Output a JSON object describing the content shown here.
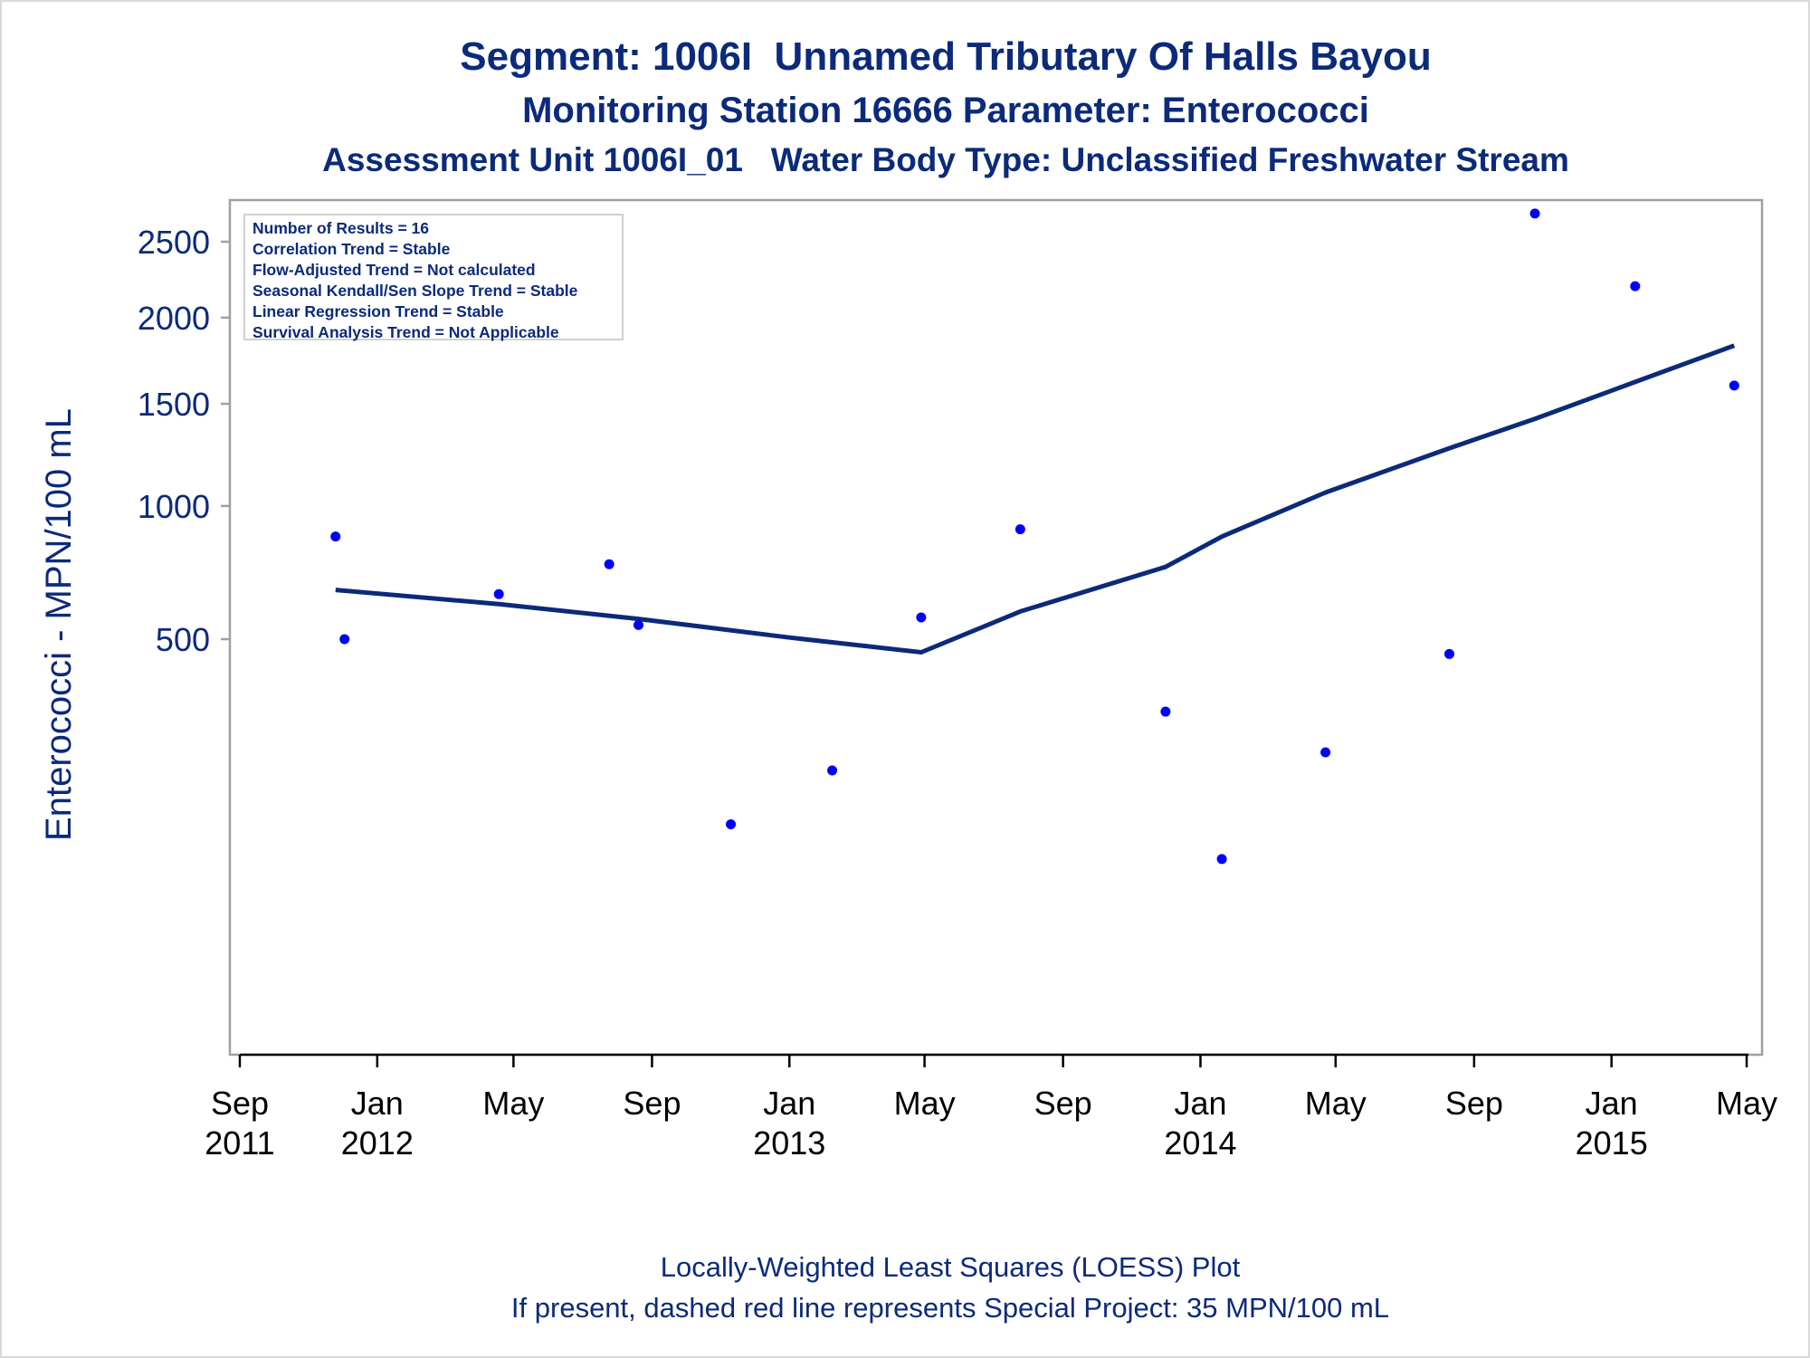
{
  "titles": {
    "line1": "Segment: 1006I  Unnamed Tributary Of Halls Bayou",
    "line2": "Monitoring Station 16666 Parameter: Enterococci",
    "line3": "Assessment Unit 1006I_01   Water Body Type: Unclassified Freshwater Stream"
  },
  "stats_box": [
    "Number of Results = 16",
    "Correlation Trend = Stable",
    "Flow-Adjusted Trend = Not calculated",
    "Seasonal Kendall/Sen Slope Trend = Stable",
    "Linear Regression Trend = Stable",
    "Survival Analysis Trend = Not Applicable"
  ],
  "footer": {
    "line1": "Locally-Weighted Least Squares (LOESS) Plot",
    "line2": "If present, dashed red line represents Special Project: 35 MPN/100 mL"
  },
  "colors": {
    "title": "#0b2a7a",
    "points": "#0000ff",
    "loess": "#0b2a7a",
    "frame": "#a0a0a0"
  },
  "chart_data": {
    "type": "scatter",
    "ylabel": "Enterococci - MPN/100 mL",
    "yscale": "sqrt",
    "ylim": [
      30,
      2900
    ],
    "xlim": [
      "2011-09-01",
      "2015-05-01"
    ],
    "yticks": [
      500,
      1000,
      1500,
      2000,
      2500
    ],
    "xticks": [
      {
        "date": "2011-09-01",
        "line1": "Sep",
        "line2": "2011"
      },
      {
        "date": "2012-01-01",
        "line1": "Jan",
        "line2": "2012"
      },
      {
        "date": "2012-05-01",
        "line1": "May",
        "line2": ""
      },
      {
        "date": "2012-09-01",
        "line1": "Sep",
        "line2": ""
      },
      {
        "date": "2013-01-01",
        "line1": "Jan",
        "line2": "2013"
      },
      {
        "date": "2013-05-01",
        "line1": "May",
        "line2": ""
      },
      {
        "date": "2013-09-01",
        "line1": "Sep",
        "line2": ""
      },
      {
        "date": "2014-01-01",
        "line1": "Jan",
        "line2": "2014"
      },
      {
        "date": "2014-05-01",
        "line1": "May",
        "line2": ""
      },
      {
        "date": "2014-09-01",
        "line1": "Sep",
        "line2": ""
      },
      {
        "date": "2015-01-01",
        "line1": "Jan",
        "line2": "2015"
      },
      {
        "date": "2015-05-01",
        "line1": "May",
        "line2": ""
      }
    ],
    "points": [
      {
        "x": "2011-11-25",
        "y": 870
      },
      {
        "x": "2011-12-03",
        "y": 500
      },
      {
        "x": "2012-04-18",
        "y": 650
      },
      {
        "x": "2012-07-25",
        "y": 760
      },
      {
        "x": "2012-08-20",
        "y": 545
      },
      {
        "x": "2012-11-10",
        "y": 90
      },
      {
        "x": "2013-02-08",
        "y": 175
      },
      {
        "x": "2013-04-28",
        "y": 570
      },
      {
        "x": "2013-07-25",
        "y": 900
      },
      {
        "x": "2013-12-01",
        "y": 300
      },
      {
        "x": "2014-01-20",
        "y": 50
      },
      {
        "x": "2014-04-22",
        "y": 210
      },
      {
        "x": "2014-08-10",
        "y": 455
      },
      {
        "x": "2014-10-25",
        "y": 2700
      },
      {
        "x": "2015-01-22",
        "y": 2200
      },
      {
        "x": "2015-04-20",
        "y": 1600
      }
    ],
    "loess": {
      "name": "LOESS",
      "x": [
        "2011-11-25",
        "2012-04-18",
        "2012-08-20",
        "2013-01-01",
        "2013-04-28",
        "2013-07-25",
        "2013-12-01",
        "2014-01-20",
        "2014-04-22",
        "2014-08-10",
        "2014-10-25",
        "2015-01-22",
        "2015-04-20"
      ],
      "y": [
        665,
        615,
        565,
        505,
        460,
        590,
        750,
        870,
        1060,
        1270,
        1420,
        1620,
        1830
      ]
    }
  }
}
